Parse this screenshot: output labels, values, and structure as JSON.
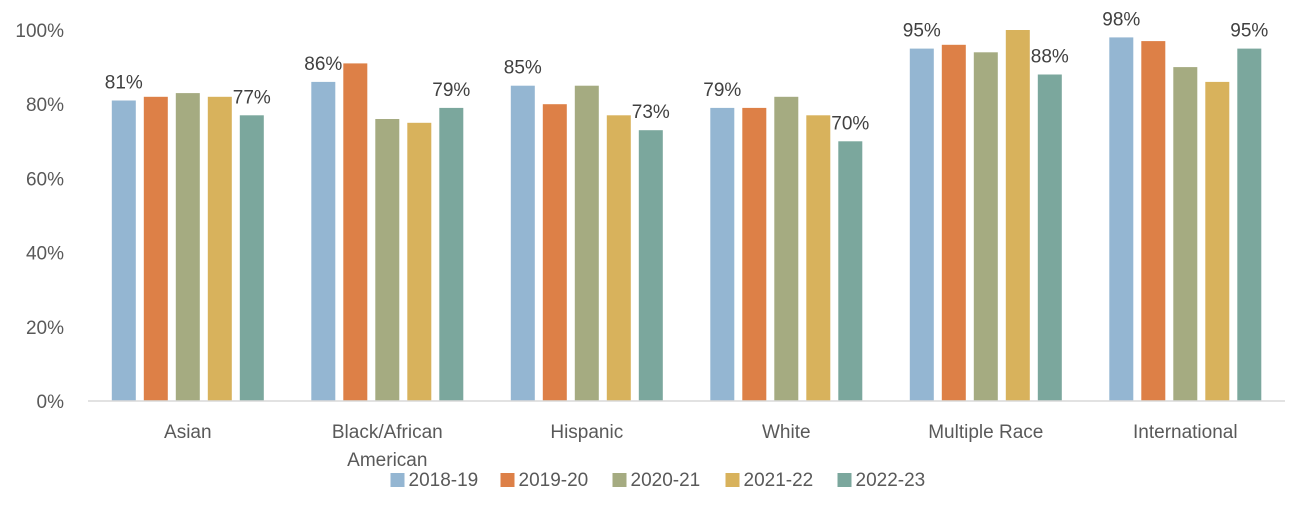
{
  "chart_data": {
    "type": "bar",
    "categories": [
      [
        "Asian"
      ],
      [
        "Black/African",
        "American"
      ],
      [
        "Hispanic"
      ],
      [
        "White"
      ],
      [
        "Multiple Race"
      ],
      [
        "International"
      ]
    ],
    "series": [
      {
        "name": "2018-19",
        "color": "#94b6d2",
        "values": [
          81,
          86,
          85,
          79,
          95,
          98
        ]
      },
      {
        "name": "2019-20",
        "color": "#dd8047",
        "values": [
          82,
          91,
          80,
          79,
          96,
          97
        ]
      },
      {
        "name": "2020-21",
        "color": "#a5ab81",
        "values": [
          83,
          76,
          85,
          82,
          94,
          90
        ]
      },
      {
        "name": "2021-22",
        "color": "#d8b25c",
        "values": [
          82,
          75,
          77,
          77,
          100,
          86
        ]
      },
      {
        "name": "2022-23",
        "color": "#7ba79d",
        "values": [
          77,
          79,
          73,
          70,
          88,
          95
        ]
      }
    ],
    "data_labels": [
      {
        "category_index": 0,
        "series_index": 0,
        "text": "81%"
      },
      {
        "category_index": 0,
        "series_index": 4,
        "text": "77%"
      },
      {
        "category_index": 1,
        "series_index": 0,
        "text": "86%"
      },
      {
        "category_index": 1,
        "series_index": 4,
        "text": "79%"
      },
      {
        "category_index": 2,
        "series_index": 0,
        "text": "85%"
      },
      {
        "category_index": 2,
        "series_index": 4,
        "text": "73%"
      },
      {
        "category_index": 3,
        "series_index": 0,
        "text": "79%"
      },
      {
        "category_index": 3,
        "series_index": 4,
        "text": "70%"
      },
      {
        "category_index": 4,
        "series_index": 0,
        "text": "95%"
      },
      {
        "category_index": 4,
        "series_index": 4,
        "text": "88%"
      },
      {
        "category_index": 5,
        "series_index": 0,
        "text": "98%"
      },
      {
        "category_index": 5,
        "series_index": 4,
        "text": "95%"
      }
    ],
    "y_ticks": [
      "0%",
      "20%",
      "40%",
      "60%",
      "80%",
      "100%"
    ],
    "ylim": [
      0,
      100
    ],
    "grid": false,
    "legend_position": "bottom",
    "title": "",
    "xlabel": "",
    "ylabel": ""
  }
}
